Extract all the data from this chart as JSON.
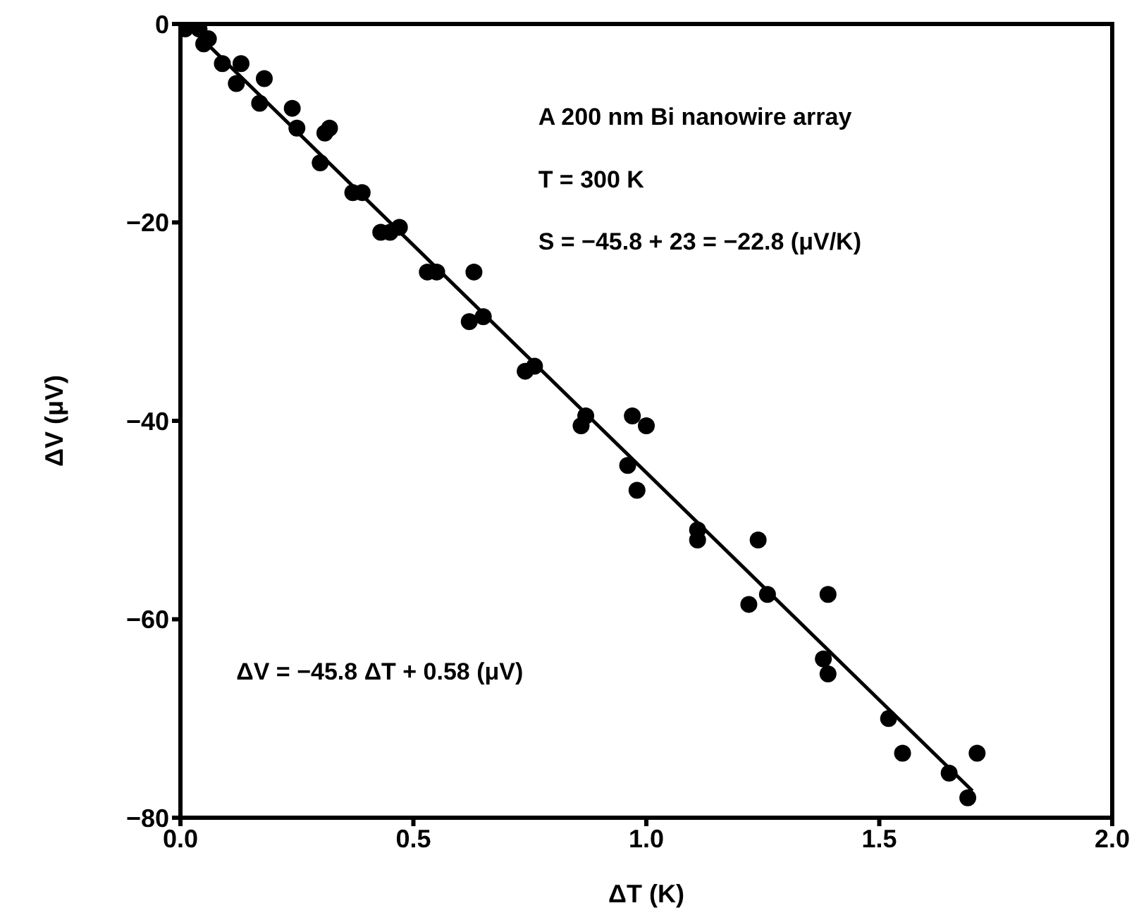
{
  "chart_data": {
    "type": "scatter",
    "xlabel": "ΔT (K)",
    "ylabel": "ΔV (μV)",
    "annotations": [
      "A 200 nm Bi nanowire array",
      "T = 300 K",
      "S = −45.8 + 23 = −22.8 (μV/K)",
      "ΔV = −45.8 ΔT + 0.58 (μV)"
    ],
    "xlim": [
      0,
      2
    ],
    "xticks": [
      {
        "value": 0,
        "label": "0.0"
      },
      0.5,
      {
        "value": 1,
        "label": "1.0"
      },
      1.5,
      {
        "value": 2,
        "label": "2.0"
      }
    ],
    "ylim": [
      -80,
      0
    ],
    "yticks": [
      {
        "value": -80,
        "label": "−80"
      },
      {
        "value": -60,
        "label": "−60"
      },
      {
        "value": -40,
        "label": "−40"
      },
      {
        "value": -20,
        "label": "−20"
      },
      0
    ],
    "grid": false,
    "marker": "circle",
    "series": [
      {
        "color": "#000000",
        "x": [
          0.01,
          0.04,
          0.05,
          0.06,
          0.09,
          0.12,
          0.13,
          0.17,
          0.18,
          0.24,
          0.25,
          0.3,
          0.31,
          0.32,
          0.37,
          0.39,
          0.43,
          0.45,
          0.47,
          0.53,
          0.55,
          0.62,
          0.63,
          0.65,
          0.74,
          0.76,
          0.86,
          0.87,
          0.96,
          0.97,
          0.98,
          1.0,
          1.11,
          1.11,
          1.22,
          1.24,
          1.26,
          1.38,
          1.39,
          1.39,
          1.52,
          1.55,
          1.65,
          1.69,
          1.71
        ],
        "values": [
          -0.5,
          -0.5,
          -2,
          -1.5,
          -4,
          -6,
          -4,
          -8,
          -5.5,
          -8.5,
          -10.5,
          -14,
          -11,
          -10.5,
          -17,
          -17,
          -21,
          -21,
          -20.5,
          -25,
          -25,
          -30,
          -25,
          -29.5,
          -35,
          -34.5,
          -40.5,
          -39.5,
          -44.5,
          -39.5,
          -47,
          -40.5,
          -51,
          -52,
          -58.5,
          -52,
          -57.5,
          -64,
          -65.5,
          -57.5,
          -70,
          -73.5,
          -75.5,
          -78,
          -73.5
        ]
      },
      {
        "type": "line",
        "color": "#000000",
        "line_style": "solid",
        "marker": "none",
        "x": [
          0.02,
          1.7
        ],
        "values": [
          -0.3,
          -77.3
        ]
      }
    ]
  }
}
